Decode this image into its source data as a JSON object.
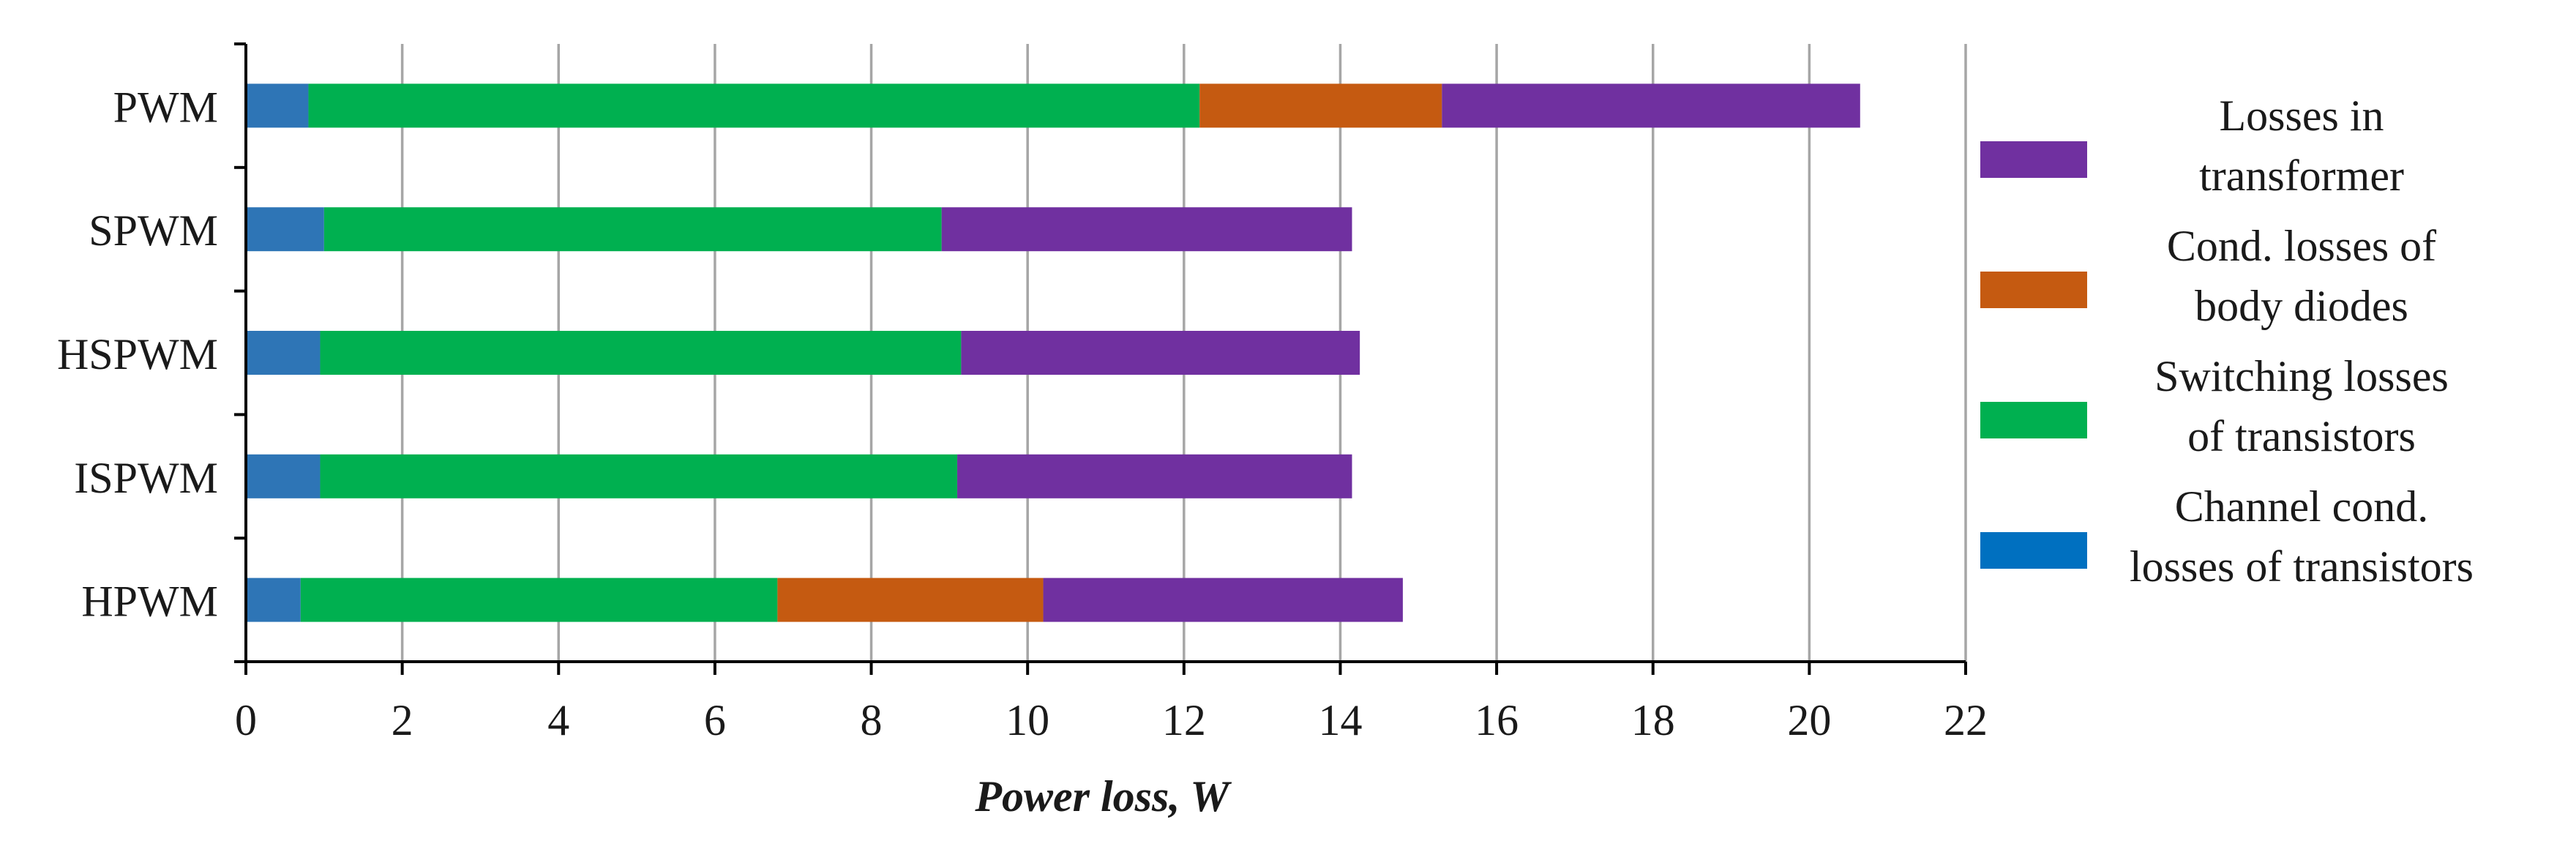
{
  "chart_data": {
    "type": "bar",
    "orientation": "horizontal",
    "stacked": true,
    "title": "",
    "xlabel": "Power loss, W",
    "ylabel": "",
    "xlim": [
      0,
      22
    ],
    "xticks": [
      0,
      2,
      4,
      6,
      8,
      10,
      12,
      14,
      16,
      18,
      20,
      22
    ],
    "grid": true,
    "legend_position": "right",
    "categories": [
      "PWM",
      "SPWM",
      "HSPWM",
      "ISPWM",
      "HPWM"
    ],
    "series": [
      {
        "name": "Channel cond. losses of transistors",
        "legend_lines": [
          "Channel cond.",
          "losses of transistors"
        ],
        "color": "#2e75b6",
        "legend_color": "#0070c0",
        "values": [
          0.8,
          1.0,
          0.95,
          0.95,
          0.7
        ]
      },
      {
        "name": "Switching losses of transistors",
        "legend_lines": [
          "Switching losses",
          "of transistors"
        ],
        "color": "#00b050",
        "values": [
          11.4,
          7.9,
          8.2,
          8.15,
          6.1
        ]
      },
      {
        "name": "Cond. losses of body diodes",
        "legend_lines": [
          "Cond. losses of",
          "body diodes"
        ],
        "color": "#c55a11",
        "values": [
          3.1,
          0.0,
          0.0,
          0.0,
          3.4
        ]
      },
      {
        "name": "Losses in transformer",
        "legend_lines": [
          "Losses in",
          "transformer"
        ],
        "color": "#7030a0",
        "values": [
          5.35,
          5.25,
          5.1,
          5.05,
          4.6
        ]
      }
    ]
  }
}
